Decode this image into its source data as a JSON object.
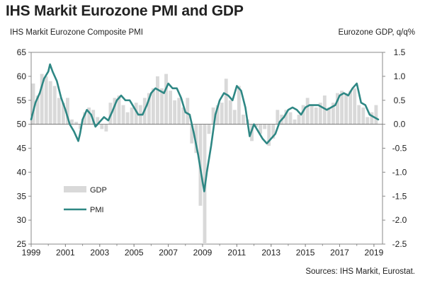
{
  "title": "IHS Markit Eurozone PMI and GDP",
  "source": "Sources: IHS Markit, Eurostat.",
  "colors": {
    "pmi": "#2e8784",
    "gdp": "#d9d9d9",
    "axis": "#8a8a8a"
  },
  "chart_data": {
    "type": "bar",
    "title": "IHS Markit Eurozone PMI and GDP",
    "y_left_label": "IHS Markit Eurozone Composite PMI",
    "y_right_label": "Eurozone GDP, q/q%",
    "y_left_ticks": [
      "65",
      "60",
      "55",
      "50",
      "45",
      "40",
      "35",
      "30",
      "25"
    ],
    "y_right_ticks": [
      "1.5",
      "1.0",
      "0.5",
      "0.0",
      "-0.5",
      "-1.0",
      "-1.5",
      "-2.0",
      "-2.5"
    ],
    "x_ticks": [
      "1999",
      "2001",
      "2003",
      "2005",
      "2007",
      "2009",
      "2011",
      "2013",
      "2015",
      "2017",
      "2019"
    ],
    "ylim_left": [
      25,
      65
    ],
    "ylim_right": [
      -2.5,
      1.5
    ],
    "xlim": [
      1999,
      2019.5
    ],
    "legend_position": "lower-left",
    "series": [
      {
        "name": "GDP",
        "type": "bar",
        "axis": "right",
        "x": [
          1999.0,
          1999.25,
          1999.5,
          1999.75,
          2000.0,
          2000.25,
          2000.5,
          2000.75,
          2001.0,
          2001.25,
          2001.5,
          2001.75,
          2002.0,
          2002.25,
          2002.5,
          2002.75,
          2003.0,
          2003.25,
          2003.5,
          2003.75,
          2004.0,
          2004.25,
          2004.5,
          2004.75,
          2005.0,
          2005.25,
          2005.5,
          2005.75,
          2006.0,
          2006.25,
          2006.5,
          2006.75,
          2007.0,
          2007.25,
          2007.5,
          2007.75,
          2008.0,
          2008.25,
          2008.5,
          2008.75,
          2009.0,
          2009.25,
          2009.5,
          2009.75,
          2010.0,
          2010.25,
          2010.5,
          2010.75,
          2011.0,
          2011.25,
          2011.5,
          2011.75,
          2012.0,
          2012.25,
          2012.5,
          2012.75,
          2013.0,
          2013.25,
          2013.5,
          2013.75,
          2014.0,
          2014.25,
          2014.5,
          2014.75,
          2015.0,
          2015.25,
          2015.5,
          2015.75,
          2016.0,
          2016.25,
          2016.5,
          2016.75,
          2017.0,
          2017.25,
          2017.5,
          2017.75,
          2018.0,
          2018.25,
          2018.5,
          2018.75,
          2019.0
        ],
        "values": [
          0.85,
          0.6,
          1.05,
          1.0,
          0.9,
          0.8,
          0.55,
          0.45,
          0.55,
          0.1,
          0.05,
          -0.1,
          0.25,
          0.35,
          0.3,
          0.15,
          -0.1,
          -0.15,
          0.45,
          0.55,
          0.6,
          0.4,
          0.25,
          0.35,
          0.45,
          0.4,
          0.55,
          0.65,
          0.75,
          1.0,
          0.75,
          1.05,
          0.7,
          0.5,
          0.55,
          0.35,
          0.55,
          -0.4,
          -0.6,
          -1.7,
          -2.5,
          -0.2,
          0.35,
          0.4,
          0.45,
          0.95,
          0.5,
          0.3,
          0.8,
          0.2,
          0.1,
          -0.35,
          -0.05,
          -0.2,
          -0.1,
          -0.45,
          -0.3,
          0.3,
          0.2,
          0.3,
          0.25,
          0.1,
          0.2,
          0.4,
          0.55,
          0.4,
          0.35,
          0.45,
          0.6,
          0.35,
          0.45,
          0.65,
          0.7,
          0.65,
          0.7,
          0.75,
          0.4,
          0.35,
          0.15,
          0.25,
          0.4
        ]
      },
      {
        "name": "PMI",
        "type": "line",
        "axis": "left",
        "x": [
          1999.0,
          1999.25,
          1999.5,
          1999.75,
          2000.0,
          2000.1,
          2000.25,
          2000.5,
          2000.75,
          2001.0,
          2001.25,
          2001.5,
          2001.75,
          2001.85,
          2002.0,
          2002.25,
          2002.5,
          2002.75,
          2003.0,
          2003.25,
          2003.5,
          2003.75,
          2004.0,
          2004.25,
          2004.5,
          2004.75,
          2005.0,
          2005.25,
          2005.5,
          2005.75,
          2006.0,
          2006.25,
          2006.5,
          2006.75,
          2007.0,
          2007.25,
          2007.5,
          2007.75,
          2008.0,
          2008.25,
          2008.5,
          2008.75,
          2009.0,
          2009.1,
          2009.25,
          2009.5,
          2009.75,
          2010.0,
          2010.25,
          2010.5,
          2010.75,
          2011.0,
          2011.25,
          2011.5,
          2011.75,
          2012.0,
          2012.25,
          2012.5,
          2012.75,
          2013.0,
          2013.25,
          2013.5,
          2013.75,
          2014.0,
          2014.25,
          2014.5,
          2014.75,
          2015.0,
          2015.25,
          2015.5,
          2015.75,
          2016.0,
          2016.25,
          2016.5,
          2016.75,
          2017.0,
          2017.25,
          2017.5,
          2017.75,
          2018.0,
          2018.25,
          2018.5,
          2018.75,
          2019.0,
          2019.25
        ],
        "values": [
          51.0,
          54.5,
          56.5,
          59.5,
          61.0,
          62.5,
          61.0,
          59.0,
          55.5,
          53.0,
          50.0,
          48.5,
          46.5,
          48.0,
          51.0,
          53.0,
          52.0,
          49.5,
          50.5,
          51.5,
          50.8,
          52.8,
          55.0,
          56.0,
          55.0,
          55.0,
          53.5,
          52.0,
          52.0,
          54.0,
          56.5,
          57.5,
          57.0,
          56.5,
          58.5,
          57.5,
          57.5,
          55.5,
          52.5,
          52.0,
          48.0,
          43.5,
          38.0,
          36.0,
          40.0,
          45.5,
          52.0,
          55.0,
          56.5,
          56.0,
          55.0,
          58.0,
          57.0,
          53.5,
          47.5,
          50.0,
          48.5,
          47.0,
          46.0,
          47.0,
          48.0,
          50.5,
          51.5,
          53.0,
          53.5,
          53.0,
          52.0,
          53.5,
          54.0,
          54.0,
          54.0,
          53.5,
          53.0,
          53.5,
          54.0,
          56.0,
          56.5,
          56.0,
          57.5,
          58.5,
          54.5,
          54.0,
          52.0,
          51.5,
          51.0
        ]
      }
    ]
  }
}
